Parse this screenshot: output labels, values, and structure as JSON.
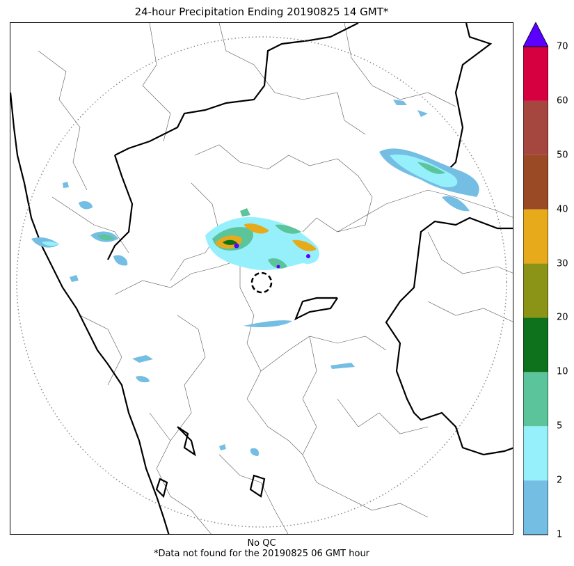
{
  "title": "24-hour Precipitation Ending 20190825 14 GMT*",
  "footer": {
    "qc_note": "No QC",
    "missing_note": "*Data not found for the 20190825 06 GMT hour"
  },
  "legend": {
    "extend": "max",
    "extend_color": "#5a00ff",
    "levels": [
      {
        "from": 1,
        "to": 2,
        "color": "#74bde3"
      },
      {
        "from": 2,
        "to": 5,
        "color": "#96f0fc"
      },
      {
        "from": 5,
        "to": 10,
        "color": "#5cc49a"
      },
      {
        "from": 10,
        "to": 20,
        "color": "#0e711b"
      },
      {
        "from": 20,
        "to": 30,
        "color": "#8b9417"
      },
      {
        "from": 30,
        "to": 40,
        "color": "#e6aa1b"
      },
      {
        "from": 40,
        "to": 50,
        "color": "#9a4b25"
      },
      {
        "from": 50,
        "to": 60,
        "color": "#a5473e"
      },
      {
        "from": 60,
        "to": 70,
        "color": "#d60040"
      }
    ],
    "tick_labels": [
      "1",
      "2",
      "5",
      "10",
      "20",
      "30",
      "40",
      "50",
      "60",
      "70"
    ]
  },
  "map": {
    "range_ring": "dotted",
    "radar_site_marker": "dashed-circle"
  }
}
